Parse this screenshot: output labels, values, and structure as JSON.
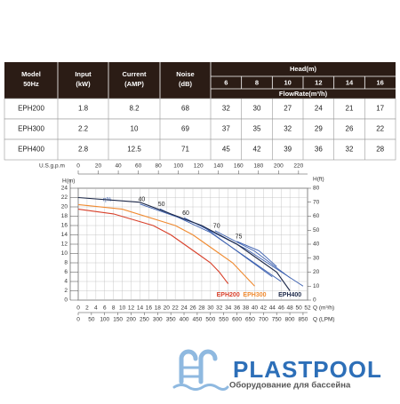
{
  "table": {
    "columns": [
      [
        "Model",
        "50Hz"
      ],
      [
        "Input",
        "(kW)"
      ],
      [
        "Current",
        "(AMP)"
      ],
      [
        "Noise",
        "(dB)"
      ]
    ],
    "group_header": "Head(m)",
    "heads": [
      6,
      8,
      10,
      12,
      14,
      16
    ],
    "sub_header": "FlowRate(m³/h)",
    "rows": [
      [
        "EPH200",
        1.8,
        8.2,
        68,
        32,
        30,
        27,
        24,
        21,
        17
      ],
      [
        "EPH300",
        2.2,
        10,
        69,
        37,
        35,
        32,
        29,
        26,
        22
      ],
      [
        "EPH400",
        2.8,
        12.5,
        71,
        45,
        42,
        39,
        36,
        32,
        28
      ]
    ]
  },
  "chart_data": {
    "type": "line",
    "y_label": "H(m)",
    "y2_label": "H(ft)",
    "x_label": "Q (m³/h)",
    "x2_label": "U.S.g.p.m",
    "x3_label": "Q (LPM)",
    "annotation": "η%",
    "xlim": [
      0,
      52
    ],
    "xticks": [
      0,
      2,
      4,
      6,
      8,
      10,
      12,
      14,
      16,
      18,
      20,
      22,
      24,
      26,
      28,
      30,
      32,
      34,
      36,
      38,
      40,
      42,
      44,
      46,
      48,
      50,
      52
    ],
    "ylim": [
      0,
      24
    ],
    "yticks": [
      0,
      2,
      4,
      6,
      8,
      10,
      12,
      14,
      16,
      18,
      20,
      22,
      24
    ],
    "y2lim": [
      0,
      80
    ],
    "y2ticks": [
      0,
      10,
      20,
      30,
      40,
      50,
      60,
      70,
      80
    ],
    "x2lim": [
      0,
      229
    ],
    "x2ticks": [
      0,
      20,
      40,
      60,
      80,
      100,
      120,
      140,
      160,
      180,
      200,
      220
    ],
    "x3lim": [
      0,
      867
    ],
    "x3ticks": [
      0,
      50,
      100,
      150,
      200,
      250,
      300,
      350,
      400,
      450,
      500,
      550,
      600,
      650,
      700,
      750,
      800,
      850
    ],
    "grid": true,
    "series": [
      {
        "name": "EPH200",
        "color": "#d8402a",
        "x": [
          0,
          8,
          17,
          21,
          24,
          27,
          30,
          32,
          34
        ],
        "values": [
          19.5,
          18.5,
          16,
          14,
          12,
          10,
          8,
          6,
          3.5
        ]
      },
      {
        "name": "EPH300",
        "color": "#f08a30",
        "x": [
          0,
          10,
          22,
          26,
          29,
          32,
          35,
          37,
          40
        ],
        "values": [
          20.5,
          19.5,
          16,
          14,
          12,
          10,
          8,
          6,
          3
        ]
      },
      {
        "name": "EPH400",
        "color": "#1e2a4a",
        "x": [
          0,
          14,
          28,
          32,
          36,
          39,
          42,
          45,
          48
        ],
        "values": [
          22,
          21,
          16,
          14,
          12,
          10,
          8,
          6,
          2
        ]
      }
    ],
    "efficiency_color": "#3a5fb0",
    "efficiency_curves": [
      {
        "name": "40",
        "x": [
          14,
          28,
          44
        ],
        "values": [
          20.6,
          16,
          5
        ]
      },
      {
        "name": "50",
        "x": [
          18.5,
          30,
          46
        ],
        "values": [
          19.6,
          14.5,
          4
        ]
      },
      {
        "name": "60",
        "x": [
          24,
          38,
          51
        ],
        "values": [
          17.7,
          11,
          3
        ]
      },
      {
        "name": "70",
        "x": [
          31,
          40,
          48
        ],
        "values": [
          14.9,
          10.5,
          4.8
        ]
      },
      {
        "name": "75",
        "x": [
          36,
          41,
          45
        ],
        "values": [
          12.6,
          10.6,
          7.2
        ]
      }
    ]
  },
  "logo": {
    "name": "PLASTPOOL",
    "tagline": "Оборудование для бассейна"
  }
}
